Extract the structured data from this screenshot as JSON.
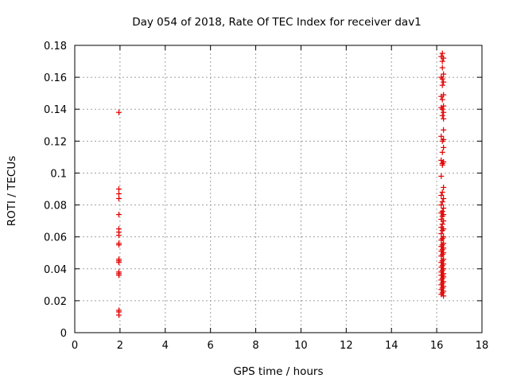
{
  "chart_data": {
    "type": "scatter",
    "title": "Day 054 of 2018, Rate Of TEC Index for receiver dav1",
    "xlabel": "GPS time / hours",
    "ylabel": "ROTI / TECUs",
    "xlim": [
      0,
      18
    ],
    "ylim": [
      0,
      0.18
    ],
    "xticks": [
      "0",
      "2",
      "4",
      "6",
      "8",
      "10",
      "12",
      "14",
      "16",
      "18"
    ],
    "yticks": [
      "0",
      "0.02",
      "0.04",
      "0.06",
      "0.08",
      "0.1",
      "0.12",
      "0.14",
      "0.16",
      "0.18"
    ],
    "grid": true,
    "marker": "+",
    "color": "#e00000",
    "series": [
      {
        "name": "dav1",
        "points": [
          [
            1.95,
            0.138
          ],
          [
            1.95,
            0.09
          ],
          [
            1.95,
            0.087
          ],
          [
            1.95,
            0.084
          ],
          [
            1.95,
            0.074
          ],
          [
            1.95,
            0.065
          ],
          [
            1.95,
            0.063
          ],
          [
            1.95,
            0.061
          ],
          [
            1.95,
            0.056
          ],
          [
            1.95,
            0.055
          ],
          [
            1.95,
            0.046
          ],
          [
            1.95,
            0.045
          ],
          [
            1.95,
            0.044
          ],
          [
            1.95,
            0.038
          ],
          [
            1.95,
            0.037
          ],
          [
            1.95,
            0.036
          ],
          [
            1.95,
            0.014
          ],
          [
            1.95,
            0.013
          ],
          [
            1.95,
            0.011
          ],
          [
            16.25,
            0.175
          ],
          [
            16.2,
            0.173
          ],
          [
            16.3,
            0.172
          ],
          [
            16.25,
            0.17
          ],
          [
            16.25,
            0.166
          ],
          [
            16.3,
            0.162
          ],
          [
            16.2,
            0.16
          ],
          [
            16.25,
            0.159
          ],
          [
            16.3,
            0.157
          ],
          [
            16.25,
            0.155
          ],
          [
            16.3,
            0.149
          ],
          [
            16.2,
            0.148
          ],
          [
            16.25,
            0.146
          ],
          [
            16.3,
            0.142
          ],
          [
            16.2,
            0.141
          ],
          [
            16.25,
            0.14
          ],
          [
            16.3,
            0.138
          ],
          [
            16.25,
            0.136
          ],
          [
            16.3,
            0.134
          ],
          [
            16.3,
            0.127
          ],
          [
            16.2,
            0.123
          ],
          [
            16.3,
            0.121
          ],
          [
            16.25,
            0.12
          ],
          [
            16.3,
            0.116
          ],
          [
            16.25,
            0.113
          ],
          [
            16.2,
            0.108
          ],
          [
            16.3,
            0.107
          ],
          [
            16.25,
            0.106
          ],
          [
            16.25,
            0.105
          ],
          [
            16.2,
            0.098
          ],
          [
            16.3,
            0.091
          ],
          [
            16.25,
            0.088
          ],
          [
            16.2,
            0.086
          ],
          [
            16.3,
            0.084
          ],
          [
            16.25,
            0.082
          ],
          [
            16.2,
            0.08
          ],
          [
            16.3,
            0.078
          ],
          [
            16.25,
            0.076
          ],
          [
            16.2,
            0.075
          ],
          [
            16.3,
            0.074
          ],
          [
            16.25,
            0.073
          ],
          [
            16.2,
            0.071
          ],
          [
            16.3,
            0.07
          ],
          [
            16.25,
            0.068
          ],
          [
            16.2,
            0.066
          ],
          [
            16.3,
            0.065
          ],
          [
            16.25,
            0.064
          ],
          [
            16.2,
            0.062
          ],
          [
            16.3,
            0.06
          ],
          [
            16.25,
            0.059
          ],
          [
            16.2,
            0.058
          ],
          [
            16.3,
            0.056
          ],
          [
            16.25,
            0.055
          ],
          [
            16.2,
            0.054
          ],
          [
            16.3,
            0.053
          ],
          [
            16.25,
            0.052
          ],
          [
            16.2,
            0.051
          ],
          [
            16.3,
            0.05
          ],
          [
            16.25,
            0.049
          ],
          [
            16.2,
            0.048
          ],
          [
            16.3,
            0.046
          ],
          [
            16.25,
            0.045
          ],
          [
            16.2,
            0.044
          ],
          [
            16.3,
            0.043
          ],
          [
            16.25,
            0.042
          ],
          [
            16.2,
            0.041
          ],
          [
            16.3,
            0.04
          ],
          [
            16.25,
            0.039
          ],
          [
            16.2,
            0.038
          ],
          [
            16.3,
            0.037
          ],
          [
            16.25,
            0.036
          ],
          [
            16.2,
            0.036
          ],
          [
            16.3,
            0.035
          ],
          [
            16.25,
            0.034
          ],
          [
            16.2,
            0.033
          ],
          [
            16.3,
            0.032
          ],
          [
            16.25,
            0.031
          ],
          [
            16.2,
            0.03
          ],
          [
            16.3,
            0.029
          ],
          [
            16.25,
            0.028
          ],
          [
            16.2,
            0.027
          ],
          [
            16.3,
            0.026
          ],
          [
            16.25,
            0.025
          ],
          [
            16.2,
            0.024
          ],
          [
            16.3,
            0.023
          ]
        ]
      }
    ]
  }
}
